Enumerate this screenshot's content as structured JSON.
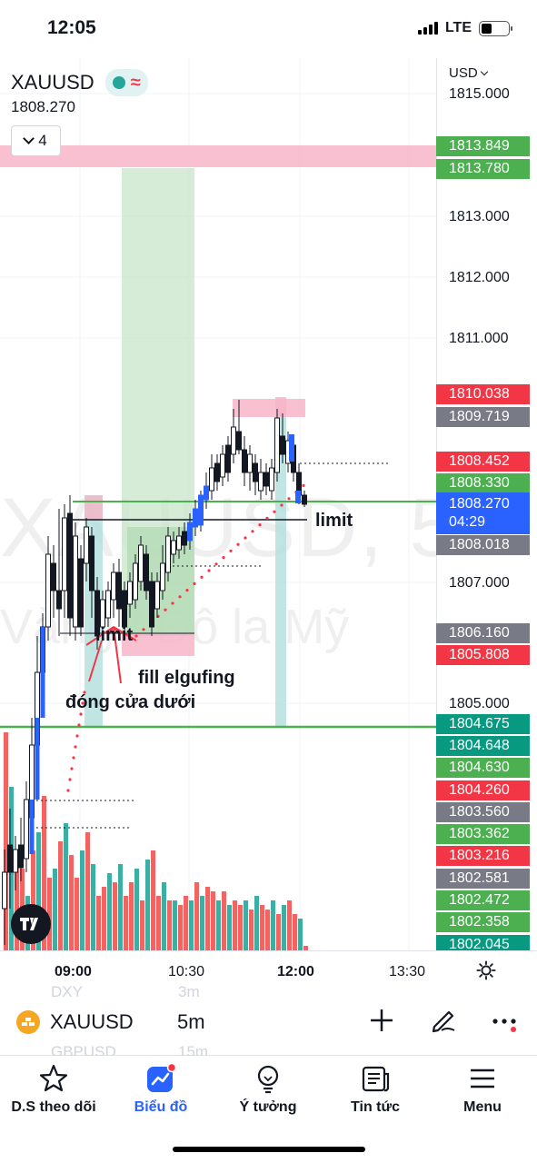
{
  "status_bar": {
    "time": "12:05",
    "network": "LTE"
  },
  "header": {
    "symbol": "XAUUSD",
    "price": "1808.270",
    "collapse_count": "4",
    "currency": "USD"
  },
  "watermark": {
    "symbol": "XAUUSD, 5",
    "description": "Vàng / Đô la Mỹ"
  },
  "price_axis": {
    "ticks": [
      "1815.000",
      "1813.000",
      "1812.000",
      "1811.000",
      "1807.000",
      "1805.000"
    ],
    "tags": [
      {
        "value": "1813.849",
        "color": "#4caf50"
      },
      {
        "value": "1813.780",
        "color": "#4caf50"
      },
      {
        "value": "1810.038",
        "color": "#f23645"
      },
      {
        "value": "1809.719",
        "color": "#787b86"
      },
      {
        "value": "1808.452",
        "color": "#f23645"
      },
      {
        "value": "1808.330",
        "color": "#4caf50"
      },
      {
        "value": "1808.018",
        "color": "#787b86"
      },
      {
        "value": "1806.160",
        "color": "#787b86"
      },
      {
        "value": "1805.808",
        "color": "#f23645"
      },
      {
        "value": "1804.675",
        "color": "#089981"
      },
      {
        "value": "1804.648",
        "color": "#089981"
      },
      {
        "value": "1804.630",
        "color": "#4caf50"
      },
      {
        "value": "1804.260",
        "color": "#f23645"
      },
      {
        "value": "1803.560",
        "color": "#787b86"
      },
      {
        "value": "1803.362",
        "color": "#4caf50"
      },
      {
        "value": "1803.216",
        "color": "#f23645"
      },
      {
        "value": "1802.581",
        "color": "#787b86"
      },
      {
        "value": "1802.472",
        "color": "#4caf50"
      },
      {
        "value": "1802.358",
        "color": "#4caf50"
      },
      {
        "value": "1802.045",
        "color": "#089981"
      }
    ],
    "current": {
      "value": "1808.270",
      "countdown": "04:29",
      "color": "#2962ff"
    }
  },
  "annotations": {
    "limit_right": "limit",
    "limit_left": "limit",
    "fill_text": "fill elgufing",
    "close_text": "đóng cửa dưới"
  },
  "time_axis": {
    "labels": [
      "09:00",
      "10:30",
      "12:00",
      "13:30"
    ]
  },
  "toolbar": {
    "symbol": "XAUUSD",
    "interval": "5m",
    "ghost_rows": [
      "DXY",
      "3m",
      "GBPUSD",
      "15m"
    ]
  },
  "bottom_nav": [
    {
      "label": "D.S theo dõi",
      "icon": "star-icon"
    },
    {
      "label": "Biểu đồ",
      "icon": "chart-icon"
    },
    {
      "label": "Ý tưởng",
      "icon": "lightbulb-icon"
    },
    {
      "label": "Tin tức",
      "icon": "news-icon"
    },
    {
      "label": "Menu",
      "icon": "menu-icon"
    }
  ],
  "colors": {
    "up": "#26a69a",
    "down": "#ef5350",
    "accent": "#2962ff",
    "hline": "#4caf50",
    "zone_pink": "#f7b5c8",
    "zone_green": "#c8e6c9"
  }
}
